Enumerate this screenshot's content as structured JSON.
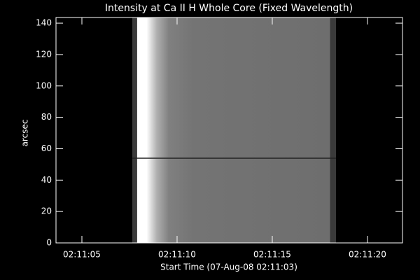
{
  "chart_data": {
    "type": "image",
    "title": "Intensity at Ca II H Whole Core (Fixed Wavelength)",
    "x_label": "Start Time (07-Aug-08 02:11:03)",
    "y_label": "arcsec",
    "xlim": [
      0.64,
      18.84
    ],
    "xticks": [
      {
        "value": 2,
        "label": "02:11:05"
      },
      {
        "value": 7,
        "label": "02:11:10"
      },
      {
        "value": 12,
        "label": "02:11:15"
      },
      {
        "value": 17,
        "label": "02:11:20"
      }
    ],
    "ylim": [
      0,
      143.6
    ],
    "yticks": [
      0,
      20,
      40,
      60,
      80,
      100,
      120,
      140
    ]
  }
}
